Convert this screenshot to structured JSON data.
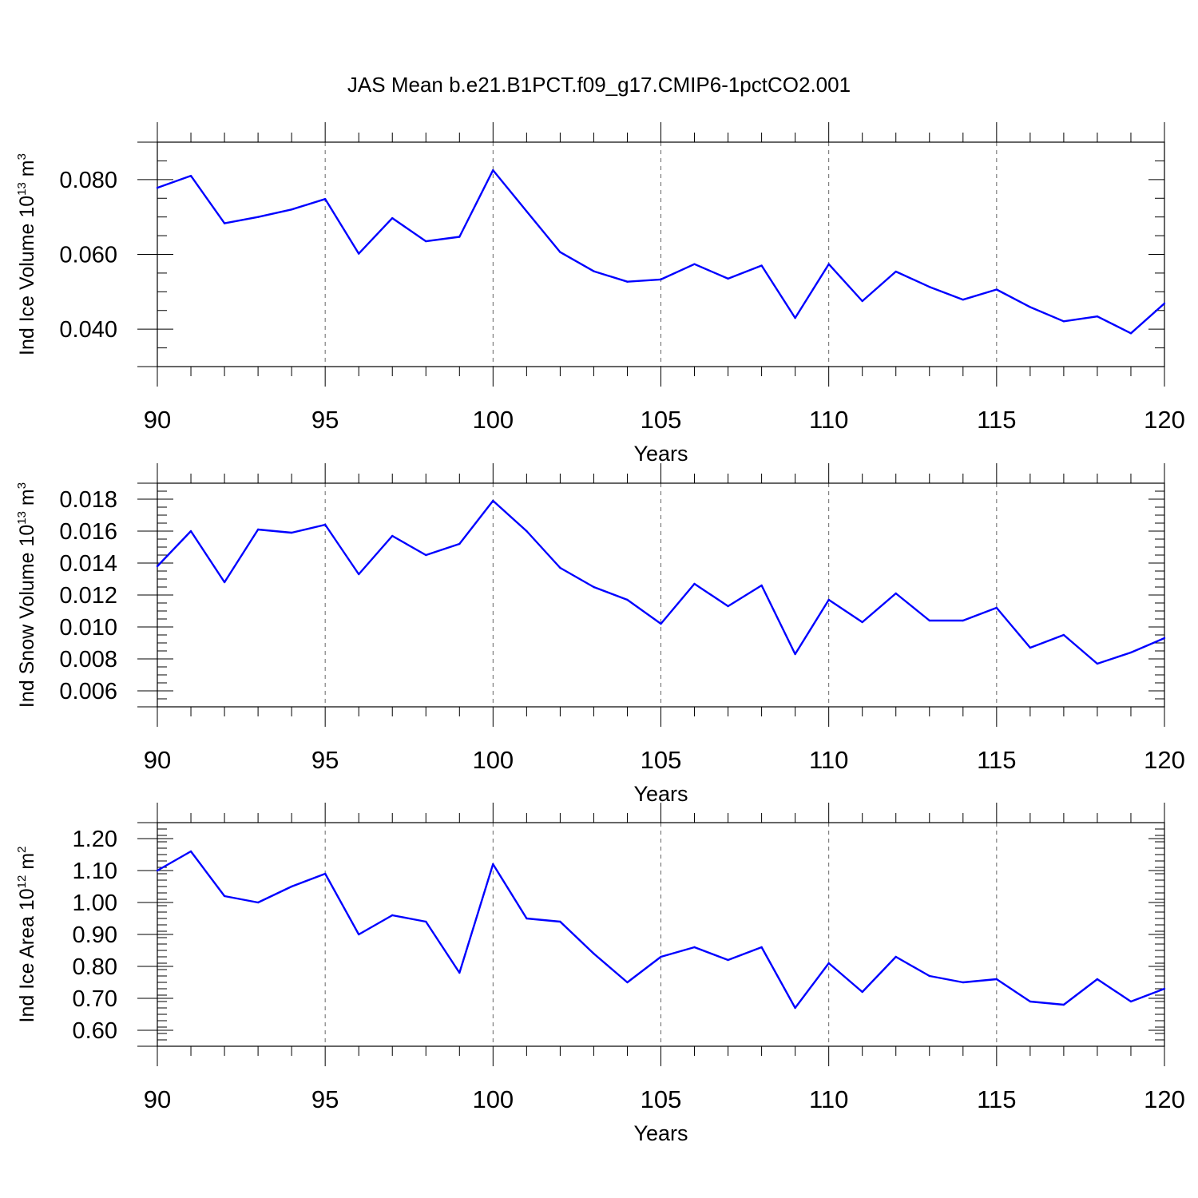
{
  "title": "JAS Mean b.e21.B1PCT.f09_g17.CMIP6-1pctCO2.001",
  "chart_data": [
    {
      "type": "line",
      "xlabel": "Years",
      "ylabel": "Ind Ice Volume 10",
      "ylabel_exp": "13",
      "ylabel_unit": " m",
      "ylabel_unit_exp": "3",
      "xlim": [
        90,
        120
      ],
      "ylim": [
        0.03,
        0.09
      ],
      "xticks": [
        90,
        95,
        100,
        105,
        110,
        115,
        120
      ],
      "xtick_labels": [
        "90",
        "95",
        "100",
        "105",
        "110",
        "115",
        "120"
      ],
      "yticks": [
        0.04,
        0.06,
        0.08
      ],
      "ytick_labels": [
        "0.040",
        "0.060",
        "0.080"
      ],
      "yminor_step": 0.005,
      "grid": "vertical dashed at major x ticks",
      "color": "#0000ff",
      "x": [
        90,
        91,
        92,
        93,
        94,
        95,
        96,
        97,
        98,
        99,
        100,
        101,
        102,
        103,
        104,
        105,
        106,
        107,
        108,
        109,
        110,
        111,
        112,
        113,
        114,
        115,
        116,
        117,
        118,
        119,
        120
      ],
      "values": [
        0.0778,
        0.081,
        0.0683,
        0.07,
        0.072,
        0.0748,
        0.0602,
        0.0697,
        0.0635,
        0.0647,
        0.0825,
        0.0715,
        0.0606,
        0.0555,
        0.0527,
        0.0533,
        0.0574,
        0.0535,
        0.057,
        0.043,
        0.0574,
        0.0475,
        0.0554,
        0.0513,
        0.0479,
        0.0506,
        0.0459,
        0.0421,
        0.0434,
        0.0389,
        0.0469
      ]
    },
    {
      "type": "line",
      "xlabel": "Years",
      "ylabel": "Ind Snow Volume 10",
      "ylabel_exp": "13",
      "ylabel_unit": " m",
      "ylabel_unit_exp": "3",
      "xlim": [
        90,
        120
      ],
      "ylim": [
        0.005,
        0.019
      ],
      "xticks": [
        90,
        95,
        100,
        105,
        110,
        115,
        120
      ],
      "xtick_labels": [
        "90",
        "95",
        "100",
        "105",
        "110",
        "115",
        "120"
      ],
      "yticks": [
        0.006,
        0.008,
        0.01,
        0.012,
        0.014,
        0.016,
        0.018
      ],
      "ytick_labels": [
        "0.006",
        "0.008",
        "0.010",
        "0.012",
        "0.014",
        "0.016",
        "0.018"
      ],
      "yminor_step": 0.0005,
      "grid": "vertical dashed at major x ticks",
      "color": "#0000ff",
      "x": [
        90,
        91,
        92,
        93,
        94,
        95,
        96,
        97,
        98,
        99,
        100,
        101,
        102,
        103,
        104,
        105,
        106,
        107,
        108,
        109,
        110,
        111,
        112,
        113,
        114,
        115,
        116,
        117,
        118,
        119,
        120
      ],
      "values": [
        0.0138,
        0.016,
        0.0128,
        0.0161,
        0.0159,
        0.0164,
        0.0133,
        0.0157,
        0.0145,
        0.0152,
        0.0179,
        0.016,
        0.0137,
        0.0125,
        0.0117,
        0.0102,
        0.0127,
        0.0113,
        0.0126,
        0.0083,
        0.0117,
        0.0103,
        0.0121,
        0.0104,
        0.0104,
        0.0112,
        0.0087,
        0.0095,
        0.0077,
        0.0084,
        0.0093
      ]
    },
    {
      "type": "line",
      "xlabel": "Years",
      "ylabel": "Ind Ice Area 10",
      "ylabel_exp": "12",
      "ylabel_unit": " m",
      "ylabel_unit_exp": "2",
      "xlim": [
        90,
        120
      ],
      "ylim": [
        0.55,
        1.25
      ],
      "xticks": [
        90,
        95,
        100,
        105,
        110,
        115,
        120
      ],
      "xtick_labels": [
        "90",
        "95",
        "100",
        "105",
        "110",
        "115",
        "120"
      ],
      "yticks": [
        0.6,
        0.7,
        0.8,
        0.9,
        1.0,
        1.1,
        1.2
      ],
      "ytick_labels": [
        "0.60",
        "0.70",
        "0.80",
        "0.90",
        "1.00",
        "1.10",
        "1.20"
      ],
      "yminor_step": 0.02,
      "grid": "vertical dashed at major x ticks",
      "color": "#0000ff",
      "x": [
        90,
        91,
        92,
        93,
        94,
        95,
        96,
        97,
        98,
        99,
        100,
        101,
        102,
        103,
        104,
        105,
        106,
        107,
        108,
        109,
        110,
        111,
        112,
        113,
        114,
        115,
        116,
        117,
        118,
        119,
        120
      ],
      "values": [
        1.1,
        1.16,
        1.02,
        1.0,
        1.05,
        1.09,
        0.9,
        0.96,
        0.94,
        0.78,
        1.12,
        0.95,
        0.94,
        0.84,
        0.75,
        0.83,
        0.86,
        0.82,
        0.86,
        0.67,
        0.81,
        0.72,
        0.83,
        0.77,
        0.75,
        0.76,
        0.69,
        0.68,
        0.76,
        0.69,
        0.73
      ]
    }
  ]
}
